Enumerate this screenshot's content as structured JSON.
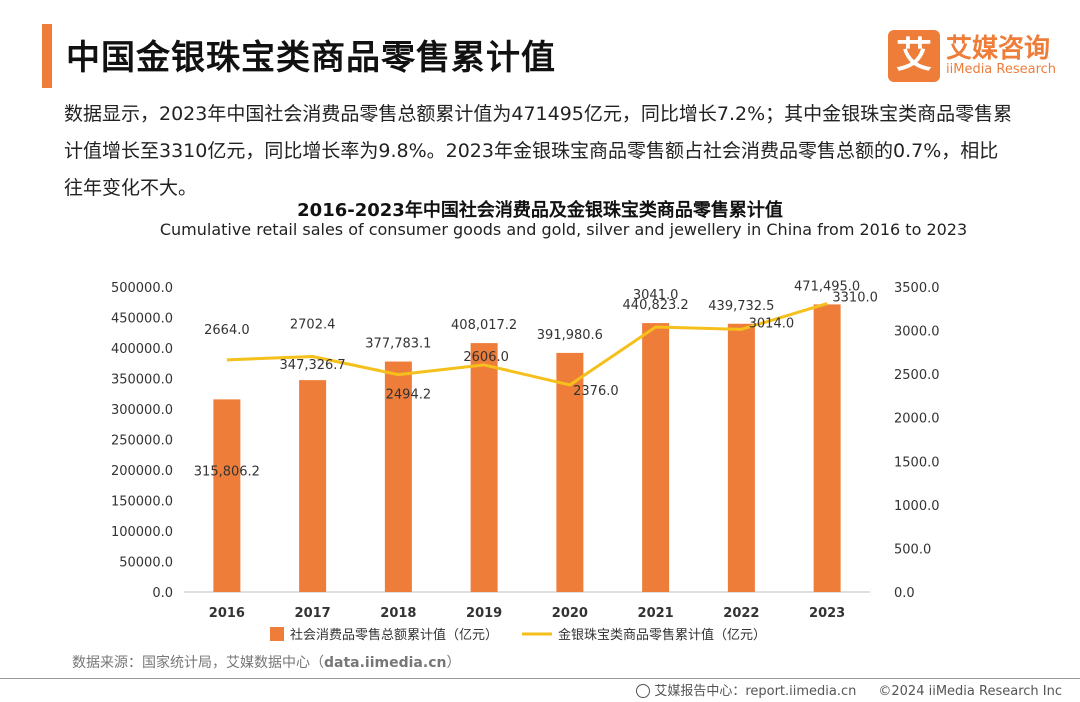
{
  "header": {
    "title": "中国金银珠宝类商品零售累计值",
    "logo_mark": "艾",
    "logo_cn": "艾媒咨询",
    "logo_en": "iiMedia Research"
  },
  "summary": "数据显示，2023年中国社会消费品零售总额累计值为471495亿元，同比增长7.2%；其中金银珠宝类商品零售累计值增长至3310亿元，同比增长率为9.8%。2023年金银珠宝商品零售额占社会消费品零售总额的0.7%，相比往年变化不大。",
  "chart_data": {
    "type": "bar",
    "title": "2016-2023年中国社会消费品及金银珠宝类商品零售累计值",
    "subtitle": "Cumulative retail sales of consumer goods and gold, silver and jewellery in China from 2016 to 2023",
    "categories": [
      "2016",
      "2017",
      "2018",
      "2019",
      "2020",
      "2021",
      "2022",
      "2023"
    ],
    "series": [
      {
        "name": "社会消费品零售总额累计值（亿元）",
        "type": "bar",
        "axis": "left",
        "color": "#ee7d3a",
        "values": [
          315806.2,
          347326.7,
          377783.1,
          408017.2,
          391980.6,
          440823.2,
          439732.5,
          471495.0
        ],
        "labels": [
          "315,806.2",
          "347,326.7",
          "377,783.1",
          "408,017.2",
          "391,980.6",
          "440,823.2",
          "439,732.5",
          "471,495.0"
        ]
      },
      {
        "name": "金银珠宝类商品零售累计值（亿元）",
        "type": "line",
        "axis": "right",
        "color": "#f5c01b",
        "values": [
          2664.0,
          2702.4,
          2494.2,
          2606.0,
          2376.0,
          3041.0,
          3014.0,
          3310.0
        ],
        "labels": [
          "2664.0",
          "2702.4",
          "2494.2",
          "2606.0",
          "2376.0",
          "3041.0",
          "3014.0",
          "3310.0"
        ]
      }
    ],
    "y_left": {
      "min": 0,
      "max": 500000,
      "step": 50000,
      "ticks": [
        "0.0",
        "50000.0",
        "100000.0",
        "150000.0",
        "200000.0",
        "250000.0",
        "300000.0",
        "350000.0",
        "400000.0",
        "450000.0",
        "500000.0"
      ]
    },
    "y_right": {
      "min": 0,
      "max": 3500,
      "step": 500,
      "ticks": [
        "0.0",
        "500.0",
        "1000.0",
        "1500.0",
        "2000.0",
        "2500.0",
        "3000.0",
        "3500.0"
      ]
    },
    "legend": "bottom",
    "grid": false
  },
  "source": "数据来源：国家统计局，艾媒数据中心（",
  "source_link": "data.iimedia.cn",
  "source_end": "）",
  "footer": {
    "report": "艾媒报告中心：report.iimedia.cn",
    "copyright": "©2024  iiMedia Research  Inc"
  }
}
